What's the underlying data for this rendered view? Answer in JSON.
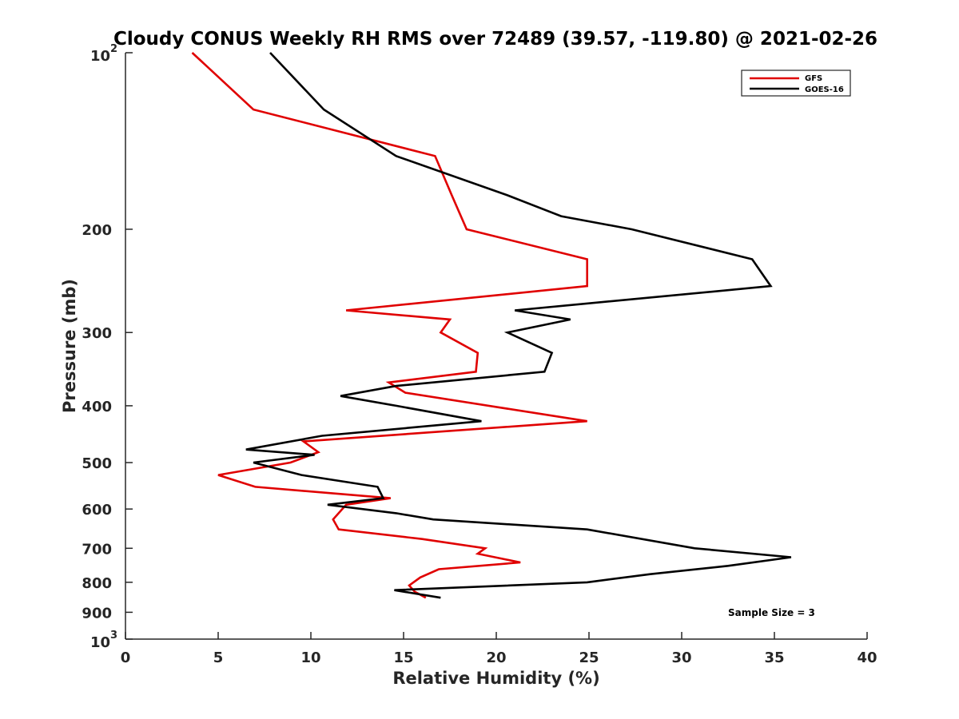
{
  "chart_data": {
    "type": "line",
    "title": "Cloudy CONUS Weekly RH RMS over 72489 (39.57, -119.80) @ 2021-02-26",
    "xlabel": "Relative Humidity (%)",
    "ylabel": "Pressure (mb)",
    "xlim": [
      0,
      40
    ],
    "ylim": [
      100,
      1000
    ],
    "y_scale": "log",
    "y_reversed": true,
    "x_ticks": [
      "0",
      "5",
      "10",
      "15",
      "20",
      "25",
      "30",
      "35",
      "40"
    ],
    "y_ticks": [
      {
        "value": 100,
        "base": "10",
        "exp": "2"
      },
      {
        "value": 200,
        "label": "200"
      },
      {
        "value": 300,
        "label": "300"
      },
      {
        "value": 400,
        "label": "400"
      },
      {
        "value": 500,
        "label": "500"
      },
      {
        "value": 600,
        "label": "600"
      },
      {
        "value": 700,
        "label": "700"
      },
      {
        "value": 800,
        "label": "800"
      },
      {
        "value": 900,
        "label": "900"
      },
      {
        "value": 1000,
        "base": "10",
        "exp": "3"
      }
    ],
    "grid": false,
    "legend_position": "top-right",
    "annotation": "Sample Size = 3",
    "series": [
      {
        "name": "GFS",
        "color": "#e00000",
        "points": [
          [
            3.6,
            100
          ],
          [
            6.9,
            125
          ],
          [
            16.7,
            150
          ],
          [
            17.6,
            175
          ],
          [
            18.4,
            200
          ],
          [
            24.9,
            225
          ],
          [
            24.9,
            250
          ],
          [
            11.9,
            275
          ],
          [
            17.5,
            285
          ],
          [
            17.0,
            300
          ],
          [
            19.0,
            325
          ],
          [
            18.9,
            350
          ],
          [
            14.2,
            365
          ],
          [
            15.1,
            380
          ],
          [
            24.9,
            425
          ],
          [
            9.6,
            460
          ],
          [
            10.4,
            480
          ],
          [
            8.9,
            500
          ],
          [
            5.0,
            525
          ],
          [
            7.0,
            550
          ],
          [
            14.3,
            575
          ],
          [
            11.9,
            590
          ],
          [
            11.2,
            625
          ],
          [
            11.5,
            650
          ],
          [
            16.0,
            675
          ],
          [
            19.4,
            700
          ],
          [
            19.0,
            715
          ],
          [
            21.3,
            740
          ],
          [
            16.9,
            760
          ],
          [
            15.9,
            785
          ],
          [
            15.3,
            810
          ],
          [
            15.6,
            830
          ],
          [
            16.2,
            850
          ]
        ]
      },
      {
        "name": "GOES-16",
        "color": "#000000",
        "points": [
          [
            7.8,
            100
          ],
          [
            10.7,
            125
          ],
          [
            14.6,
            150
          ],
          [
            20.6,
            175
          ],
          [
            23.5,
            190
          ],
          [
            27.3,
            200
          ],
          [
            33.8,
            225
          ],
          [
            34.8,
            250
          ],
          [
            21.0,
            275
          ],
          [
            24.0,
            285
          ],
          [
            20.6,
            300
          ],
          [
            23.0,
            325
          ],
          [
            22.6,
            350
          ],
          [
            14.6,
            370
          ],
          [
            11.6,
            385
          ],
          [
            14.6,
            400
          ],
          [
            19.2,
            425
          ],
          [
            10.6,
            450
          ],
          [
            6.5,
            475
          ],
          [
            10.2,
            485
          ],
          [
            6.9,
            500
          ],
          [
            9.5,
            525
          ],
          [
            13.6,
            550
          ],
          [
            13.9,
            575
          ],
          [
            10.9,
            590
          ],
          [
            14.6,
            610
          ],
          [
            16.6,
            625
          ],
          [
            24.9,
            650
          ],
          [
            30.7,
            700
          ],
          [
            35.9,
            725
          ],
          [
            32.5,
            750
          ],
          [
            28.3,
            775
          ],
          [
            24.9,
            800
          ],
          [
            14.5,
            825
          ],
          [
            17.0,
            850
          ]
        ]
      }
    ]
  }
}
